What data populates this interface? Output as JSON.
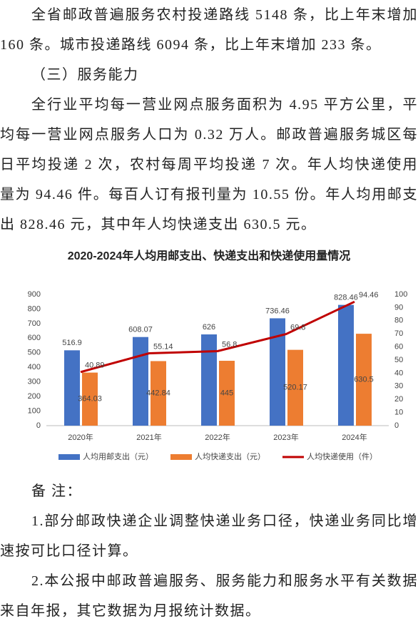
{
  "paragraphs": [
    "全省邮政普遍服务农村投递路线 5148 条，比上年末增加 160 条。城市投递路线 6094 条，比上年末增加 233 条。"
  ],
  "section_heading": "（三）服务能力",
  "section_paragraphs": [
    "全行业平均每一营业网点服务面积为 4.95 平方公里，平均每一营业网点服务人口为 0.32 万人。邮政普遍服务城区每日平均投递 2 次，农村每周平均投递 7 次。年人均快递使用量为 94.46 件。每百人订有报刊量为 10.55 份。年人均用邮支出 828.46 元，其中年人均快递支出 630.5 元。"
  ],
  "chart_data": {
    "type": "bar",
    "title": "2020-2024年人均用邮支出、快递支出和快递使用量情况",
    "categories": [
      "2020年",
      "2021年",
      "2022年",
      "2023年",
      "2024年"
    ],
    "series": [
      {
        "name": "人均用邮支出（元）",
        "color": "#4472c4",
        "values": [
          516.9,
          608.07,
          626,
          736.46,
          828.46
        ]
      },
      {
        "name": "人均快递支出（元）",
        "color": "#ed7d31",
        "values": [
          364.03,
          442.84,
          445,
          520.17,
          630.5
        ]
      },
      {
        "name": "人均快递使用（件）",
        "color": "#c00000",
        "type": "line",
        "axis": "y2",
        "values": [
          40.89,
          55.14,
          56.8,
          69.8,
          94.46
        ]
      }
    ],
    "ylim": [
      0,
      900
    ],
    "yticks": [
      0,
      100,
      200,
      300,
      400,
      500,
      600,
      700,
      800,
      900
    ],
    "y2lim": [
      0,
      100
    ],
    "y2ticks": [
      0,
      10,
      20,
      30,
      40,
      50,
      60,
      70,
      80,
      90,
      100
    ],
    "legend": "bottom"
  },
  "notes": {
    "heading": "备 注：",
    "items": [
      "1.部分邮政快递企业调整快递业务口径，快递业务同比增速按可比口径计算。",
      "2.本公报中邮政普遍服务、服务能力和服务水平有关数据来自年报，其它数据为月报统计数据。"
    ]
  }
}
